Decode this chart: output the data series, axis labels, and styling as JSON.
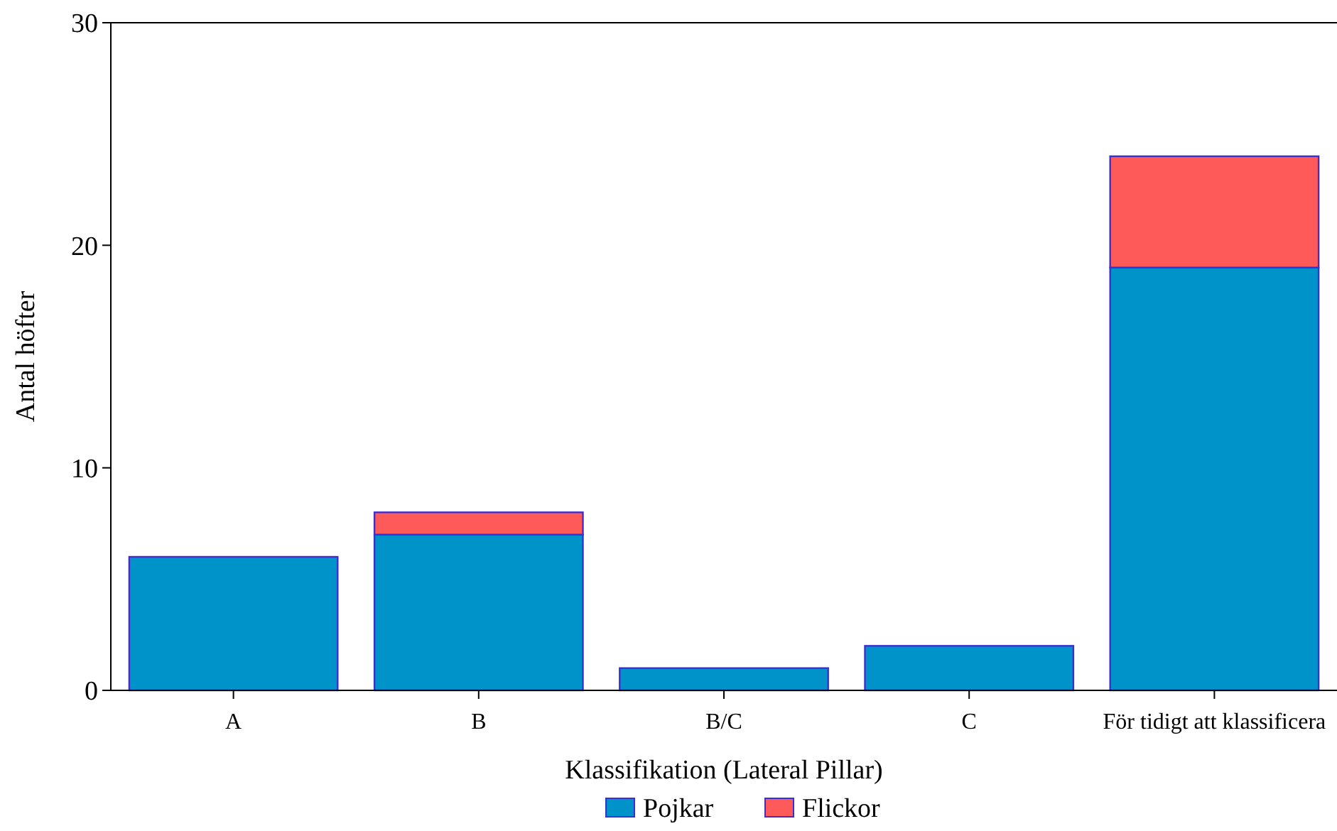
{
  "chart_data": {
    "type": "bar",
    "xlabel": "Klassifikation (Lateral Pillar)",
    "ylabel": "Antal höfter",
    "categories": [
      "A",
      "B",
      "B/C",
      "C",
      "För tidigt att klassificera"
    ],
    "stacked": true,
    "series": [
      {
        "name": "Pojkar",
        "color": "#0093c9",
        "values": [
          6,
          7,
          1,
          2,
          19
        ]
      },
      {
        "name": "Flickor",
        "color": "#ff5a5a",
        "values": [
          0,
          1,
          0,
          0,
          5
        ]
      }
    ],
    "ylim": [
      0,
      30
    ],
    "yticks": [
      0,
      10,
      20,
      30
    ],
    "grid": false,
    "legend": "bottom"
  }
}
